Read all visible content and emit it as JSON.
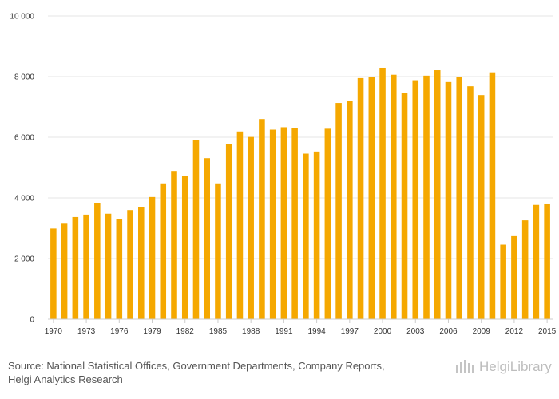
{
  "chart_data": {
    "type": "bar",
    "title": "",
    "xlabel": "",
    "ylabel": "",
    "color": "#f5a800",
    "ylim": [
      0,
      10000
    ],
    "yticks": [
      0,
      2000,
      4000,
      6000,
      8000,
      10000
    ],
    "ytick_labels": [
      "0",
      "2 000",
      "4 000",
      "6 000",
      "8 000",
      "10 000"
    ],
    "xtick_labels": [
      "1970",
      "1973",
      "1976",
      "1979",
      "1982",
      "1985",
      "1988",
      "1991",
      "1994",
      "1997",
      "2000",
      "2003",
      "2006",
      "2009",
      "2012",
      "2015"
    ],
    "categories": [
      "1970",
      "1971",
      "1972",
      "1973",
      "1974",
      "1975",
      "1976",
      "1977",
      "1978",
      "1979",
      "1980",
      "1981",
      "1982",
      "1983",
      "1984",
      "1985",
      "1986",
      "1987",
      "1988",
      "1989",
      "1990",
      "1991",
      "1992",
      "1993",
      "1994",
      "1995",
      "1996",
      "1997",
      "1998",
      "1999",
      "2000",
      "2001",
      "2002",
      "2003",
      "2004",
      "2005",
      "2006",
      "2007",
      "2008",
      "2009",
      "2010",
      "2011",
      "2012",
      "2013",
      "2014",
      "2015"
    ],
    "values": [
      2990,
      3150,
      3370,
      3450,
      3820,
      3480,
      3290,
      3600,
      3690,
      4030,
      4480,
      4890,
      4720,
      5910,
      5310,
      4480,
      5780,
      6190,
      6010,
      6600,
      6250,
      6330,
      6290,
      5460,
      5530,
      6280,
      7130,
      7200,
      7950,
      8000,
      8290,
      8060,
      7450,
      7880,
      8030,
      8210,
      7820,
      7980,
      7680,
      7390,
      8140,
      2460,
      2740,
      3260,
      3770,
      3790
    ],
    "grid": true,
    "legend": "none"
  },
  "footer": {
    "source_line1": "Source: National Statistical Offices, Government Departments, Company Reports,",
    "source_line2": "Helgi Analytics Research"
  },
  "logo": {
    "name": "HelgiLibrary"
  }
}
